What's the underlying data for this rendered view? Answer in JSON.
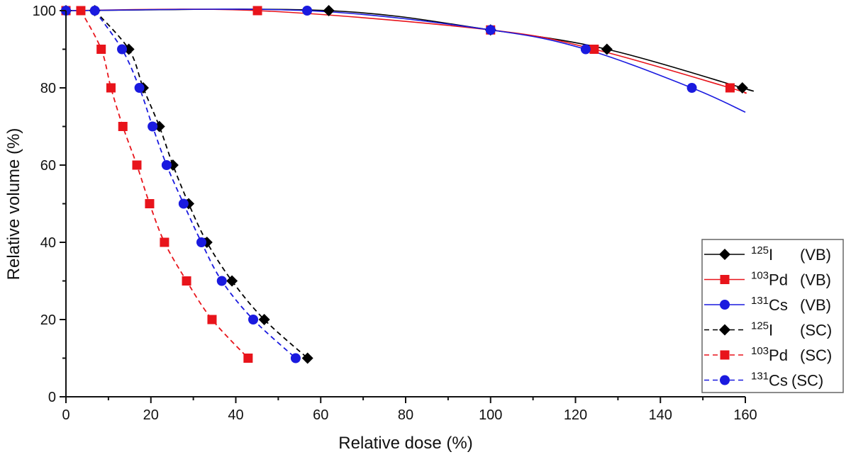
{
  "chart_data": {
    "type": "line",
    "title": "",
    "xlabel": "Relative dose (%)",
    "ylabel": "Relative volume (%)",
    "xlim": [
      0,
      160
    ],
    "ylim": [
      0,
      100
    ],
    "x_ticks": [
      0,
      20,
      40,
      60,
      80,
      100,
      120,
      140,
      160
    ],
    "y_ticks": [
      0,
      20,
      40,
      60,
      80,
      100
    ],
    "x_ticks_labels": [
      "0",
      "20",
      "40",
      "60",
      "80",
      "100",
      "120",
      "140",
      "160"
    ],
    "y_ticks_labels": [
      "0",
      "20",
      "40",
      "60",
      "80",
      "100"
    ],
    "grid": false,
    "legend_position": "bottom-right",
    "series": [
      {
        "name": "125I (VB)",
        "isotope_mass": "125",
        "element": "I",
        "method": "(VB)",
        "color": "#000000",
        "marker": "diamond",
        "line_style": "solid",
        "x": [
          0,
          61.9,
          100,
          127.4,
          159.3
        ],
        "y": [
          100,
          100,
          95,
          90,
          80
        ]
      },
      {
        "name": "103Pd (VB)",
        "isotope_mass": "103",
        "element": "Pd",
        "method": "(VB)",
        "color": "#e8141b",
        "marker": "square",
        "line_style": "solid",
        "x": [
          0,
          45.1,
          100,
          124.4,
          156.4
        ],
        "y": [
          100,
          100,
          95,
          90,
          80
        ]
      },
      {
        "name": "131Cs (VB)",
        "isotope_mass": "131",
        "element": "Cs",
        "method": "(VB)",
        "color": "#1a1adf",
        "marker": "circle",
        "line_style": "solid",
        "x": [
          0,
          56.8,
          100,
          122.4,
          147.4
        ],
        "y": [
          100,
          100,
          95,
          90,
          80
        ]
      },
      {
        "name": "125I (SC)",
        "isotope_mass": "125",
        "element": "I",
        "method": "(SC)",
        "color": "#000000",
        "marker": "diamond",
        "line_style": "dashed",
        "x": [
          6.8,
          14.8,
          18.2,
          22.0,
          25.2,
          28.9,
          33.2,
          39.1,
          46.7,
          56.9
        ],
        "y": [
          100,
          90,
          80,
          70,
          60,
          50,
          40,
          30,
          20,
          10
        ]
      },
      {
        "name": "103Pd (SC)",
        "isotope_mass": "103",
        "element": "Pd",
        "method": "(SC)",
        "color": "#e8141b",
        "marker": "square",
        "line_style": "dashed",
        "x": [
          3.5,
          8.3,
          10.6,
          13.4,
          16.7,
          19.7,
          23.2,
          28.4,
          34.4,
          42.9
        ],
        "y": [
          100,
          90,
          80,
          70,
          60,
          50,
          40,
          30,
          20,
          10
        ]
      },
      {
        "name": "131Cs (SC)",
        "isotope_mass": "131",
        "element": "Cs",
        "method": "(SC)",
        "color": "#1a1adf",
        "marker": "circle",
        "line_style": "dashed",
        "x": [
          6.8,
          13.2,
          17.3,
          20.4,
          23.7,
          27.7,
          31.9,
          36.7,
          44.1,
          54.1
        ],
        "y": [
          100,
          90,
          80,
          70,
          60,
          50,
          40,
          30,
          20,
          10
        ]
      }
    ]
  }
}
